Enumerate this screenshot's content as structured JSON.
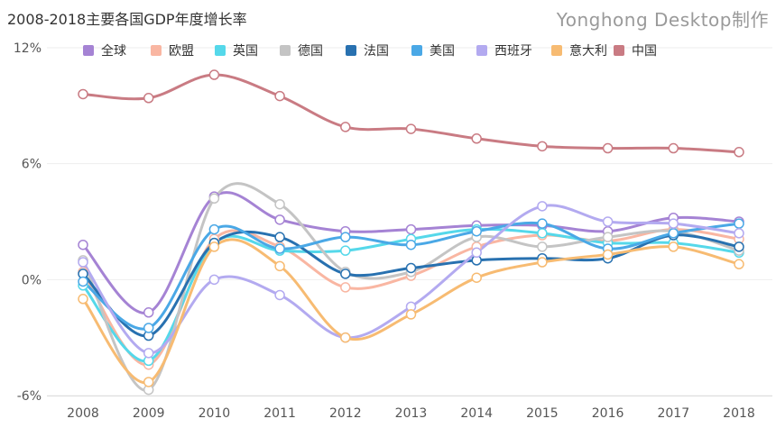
{
  "title": "2008-2018主要各国GDP年度增长率",
  "watermark": "Yonghong Desktop制作",
  "chart_data": {
    "type": "line",
    "title": "2008-2018主要各国GDP年度增长率",
    "x": [
      "2008",
      "2009",
      "2010",
      "2011",
      "2012",
      "2013",
      "2014",
      "2015",
      "2016",
      "2017",
      "2018"
    ],
    "ylim": [
      -6,
      12
    ],
    "yticks": [
      -6,
      0,
      6,
      12
    ],
    "ytick_labels": [
      "-6%",
      "0%",
      "6%",
      "12%"
    ],
    "grid": true,
    "legend_position": "top",
    "smooth": true,
    "series": [
      {
        "name": "全球",
        "color": "#a583d4",
        "values": [
          1.8,
          -1.7,
          4.3,
          3.1,
          2.5,
          2.6,
          2.8,
          2.8,
          2.5,
          3.2,
          3.0
        ]
      },
      {
        "name": "欧盟",
        "color": "#f9b6a2",
        "values": [
          0.4,
          -4.4,
          2.1,
          1.7,
          -0.4,
          0.2,
          1.7,
          2.3,
          2.0,
          2.6,
          2.1
        ]
      },
      {
        "name": "英国",
        "color": "#55d8ea",
        "values": [
          -0.3,
          -4.2,
          1.9,
          1.5,
          1.5,
          2.1,
          2.6,
          2.4,
          1.9,
          1.9,
          1.4
        ]
      },
      {
        "name": "德国",
        "color": "#c4c4c4",
        "values": [
          1.0,
          -5.7,
          4.2,
          3.9,
          0.4,
          0.4,
          2.2,
          1.7,
          2.2,
          2.5,
          1.5
        ]
      },
      {
        "name": "法国",
        "color": "#2871b0",
        "values": [
          0.3,
          -2.9,
          1.9,
          2.2,
          0.3,
          0.6,
          1.0,
          1.1,
          1.1,
          2.3,
          1.7
        ]
      },
      {
        "name": "美国",
        "color": "#4aa8e6",
        "values": [
          -0.1,
          -2.5,
          2.6,
          1.6,
          2.2,
          1.8,
          2.5,
          2.9,
          1.6,
          2.4,
          2.9
        ]
      },
      {
        "name": "西班牙",
        "color": "#b3aaf0",
        "values": [
          0.9,
          -3.8,
          0.0,
          -0.8,
          -3.0,
          -1.4,
          1.4,
          3.8,
          3.0,
          2.9,
          2.4
        ]
      },
      {
        "name": "意大利",
        "color": "#f7bb72",
        "values": [
          -1.0,
          -5.3,
          1.7,
          0.7,
          -3.0,
          -1.8,
          0.1,
          0.9,
          1.3,
          1.7,
          0.8
        ]
      },
      {
        "name": "中国",
        "color": "#c97b83",
        "values": [
          9.6,
          9.4,
          10.6,
          9.5,
          7.9,
          7.8,
          7.3,
          6.9,
          6.8,
          6.8,
          6.6
        ]
      }
    ]
  }
}
